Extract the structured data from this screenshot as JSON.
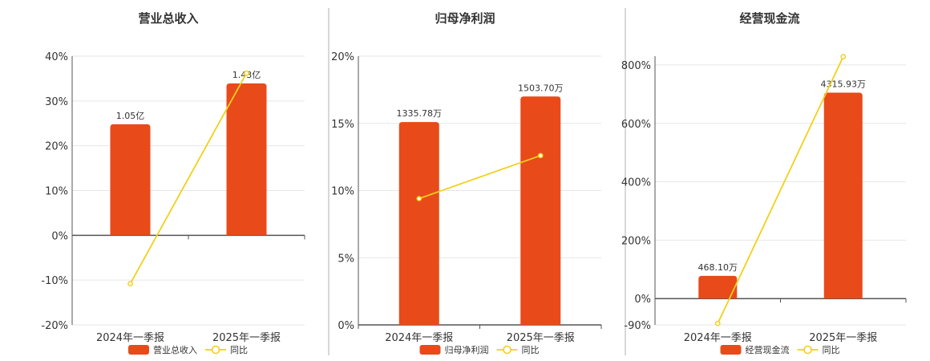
{
  "colors": {
    "bar": "#e94a1a",
    "line": "#f2d01a",
    "axis": "#555555",
    "grid": "#e6e6e6",
    "divider": "#b0b0b0"
  },
  "chart_data": [
    {
      "type": "bar",
      "title": "营业总收入",
      "categories": [
        "2024年一季报",
        "2025年一季报"
      ],
      "ylim": [
        -20,
        40
      ],
      "yticks": [
        -20,
        -10,
        0,
        10,
        20,
        30,
        40
      ],
      "grid": true,
      "legend_position": "bottom",
      "series": [
        {
          "name": "营业总收入",
          "type": "bar",
          "values": [
            24.8,
            33.9
          ],
          "labels": [
            "1.05亿",
            "1.43亿"
          ]
        },
        {
          "name": "同比",
          "type": "line",
          "values": [
            -10.8,
            36.2
          ]
        }
      ],
      "legend": {
        "bar": "营业总收入",
        "line": "同比"
      }
    },
    {
      "type": "bar",
      "title": "归母净利润",
      "categories": [
        "2024年一季报",
        "2025年一季报"
      ],
      "ylim": [
        0,
        20
      ],
      "yticks": [
        0,
        5,
        10,
        15,
        20
      ],
      "grid": true,
      "legend_position": "bottom",
      "series": [
        {
          "name": "归母净利润",
          "type": "bar",
          "values": [
            15.1,
            17.0
          ],
          "labels": [
            "1335.78万",
            "1503.70万"
          ]
        },
        {
          "name": "同比",
          "type": "line",
          "values": [
            9.4,
            12.6
          ]
        }
      ],
      "legend": {
        "bar": "归母净利润",
        "line": "同比"
      }
    },
    {
      "type": "bar",
      "title": "经营现金流",
      "categories": [
        "2024年一季报",
        "2025年一季报"
      ],
      "ylim": [
        -90,
        830
      ],
      "yticks": [
        -90,
        0,
        200,
        400,
        600,
        800
      ],
      "grid": true,
      "legend_position": "bottom",
      "series": [
        {
          "name": "经营现金流",
          "type": "bar",
          "values": [
            78,
            705
          ],
          "labels": [
            "468.10万",
            "4315.93万"
          ]
        },
        {
          "name": "同比",
          "type": "line",
          "values": [
            -85,
            828
          ]
        }
      ],
      "legend": {
        "bar": "经营现金流",
        "line": "同比"
      }
    }
  ]
}
